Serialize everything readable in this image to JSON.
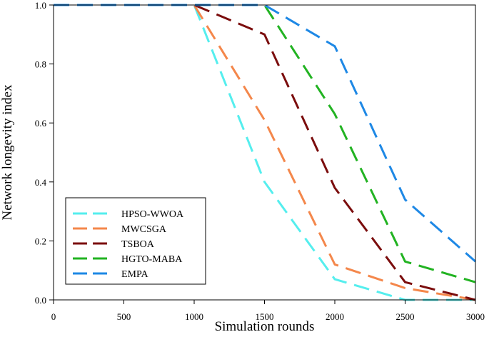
{
  "chart_data": {
    "type": "line",
    "title": "",
    "xlabel": "Simulation rounds",
    "ylabel": "Network longevity index",
    "xlim": [
      0,
      3000
    ],
    "ylim": [
      0,
      1
    ],
    "x_ticks": [
      0,
      500,
      1000,
      1500,
      2000,
      2500,
      3000
    ],
    "x_tick_labels": [
      "0",
      "500",
      "1000",
      "1500",
      "2000",
      "2500",
      "3000"
    ],
    "y_ticks": [
      0,
      0.2,
      0.4,
      0.6,
      0.8,
      1.0
    ],
    "y_tick_labels": [
      "0.0",
      "0.2",
      "0.4",
      "0.6",
      "0.8",
      "1.0"
    ],
    "grid": false,
    "legend_position": "bottom-left",
    "x": [
      0,
      500,
      1000,
      1500,
      2000,
      2500,
      3000
    ],
    "series": [
      {
        "name": "HPSO-WWOA",
        "color": "#55eeee",
        "values": [
          1.0,
          1.0,
          1.0,
          0.4,
          0.07,
          0.0,
          0.0
        ]
      },
      {
        "name": "MWCSGA",
        "color": "#f4874b",
        "values": [
          1.0,
          1.0,
          1.0,
          0.61,
          0.12,
          0.04,
          0.0
        ]
      },
      {
        "name": "TSBOA",
        "color": "#7b0d0d",
        "values": [
          1.0,
          1.0,
          1.0,
          0.9,
          0.38,
          0.06,
          0.0
        ]
      },
      {
        "name": "HGTO-MABA",
        "color": "#22b322",
        "values": [
          1.0,
          1.0,
          1.0,
          1.0,
          0.63,
          0.13,
          0.06
        ]
      },
      {
        "name": "EMPA",
        "color": "#1e88e5",
        "values": [
          1.0,
          1.0,
          1.0,
          1.0,
          0.86,
          0.34,
          0.13
        ]
      }
    ]
  }
}
